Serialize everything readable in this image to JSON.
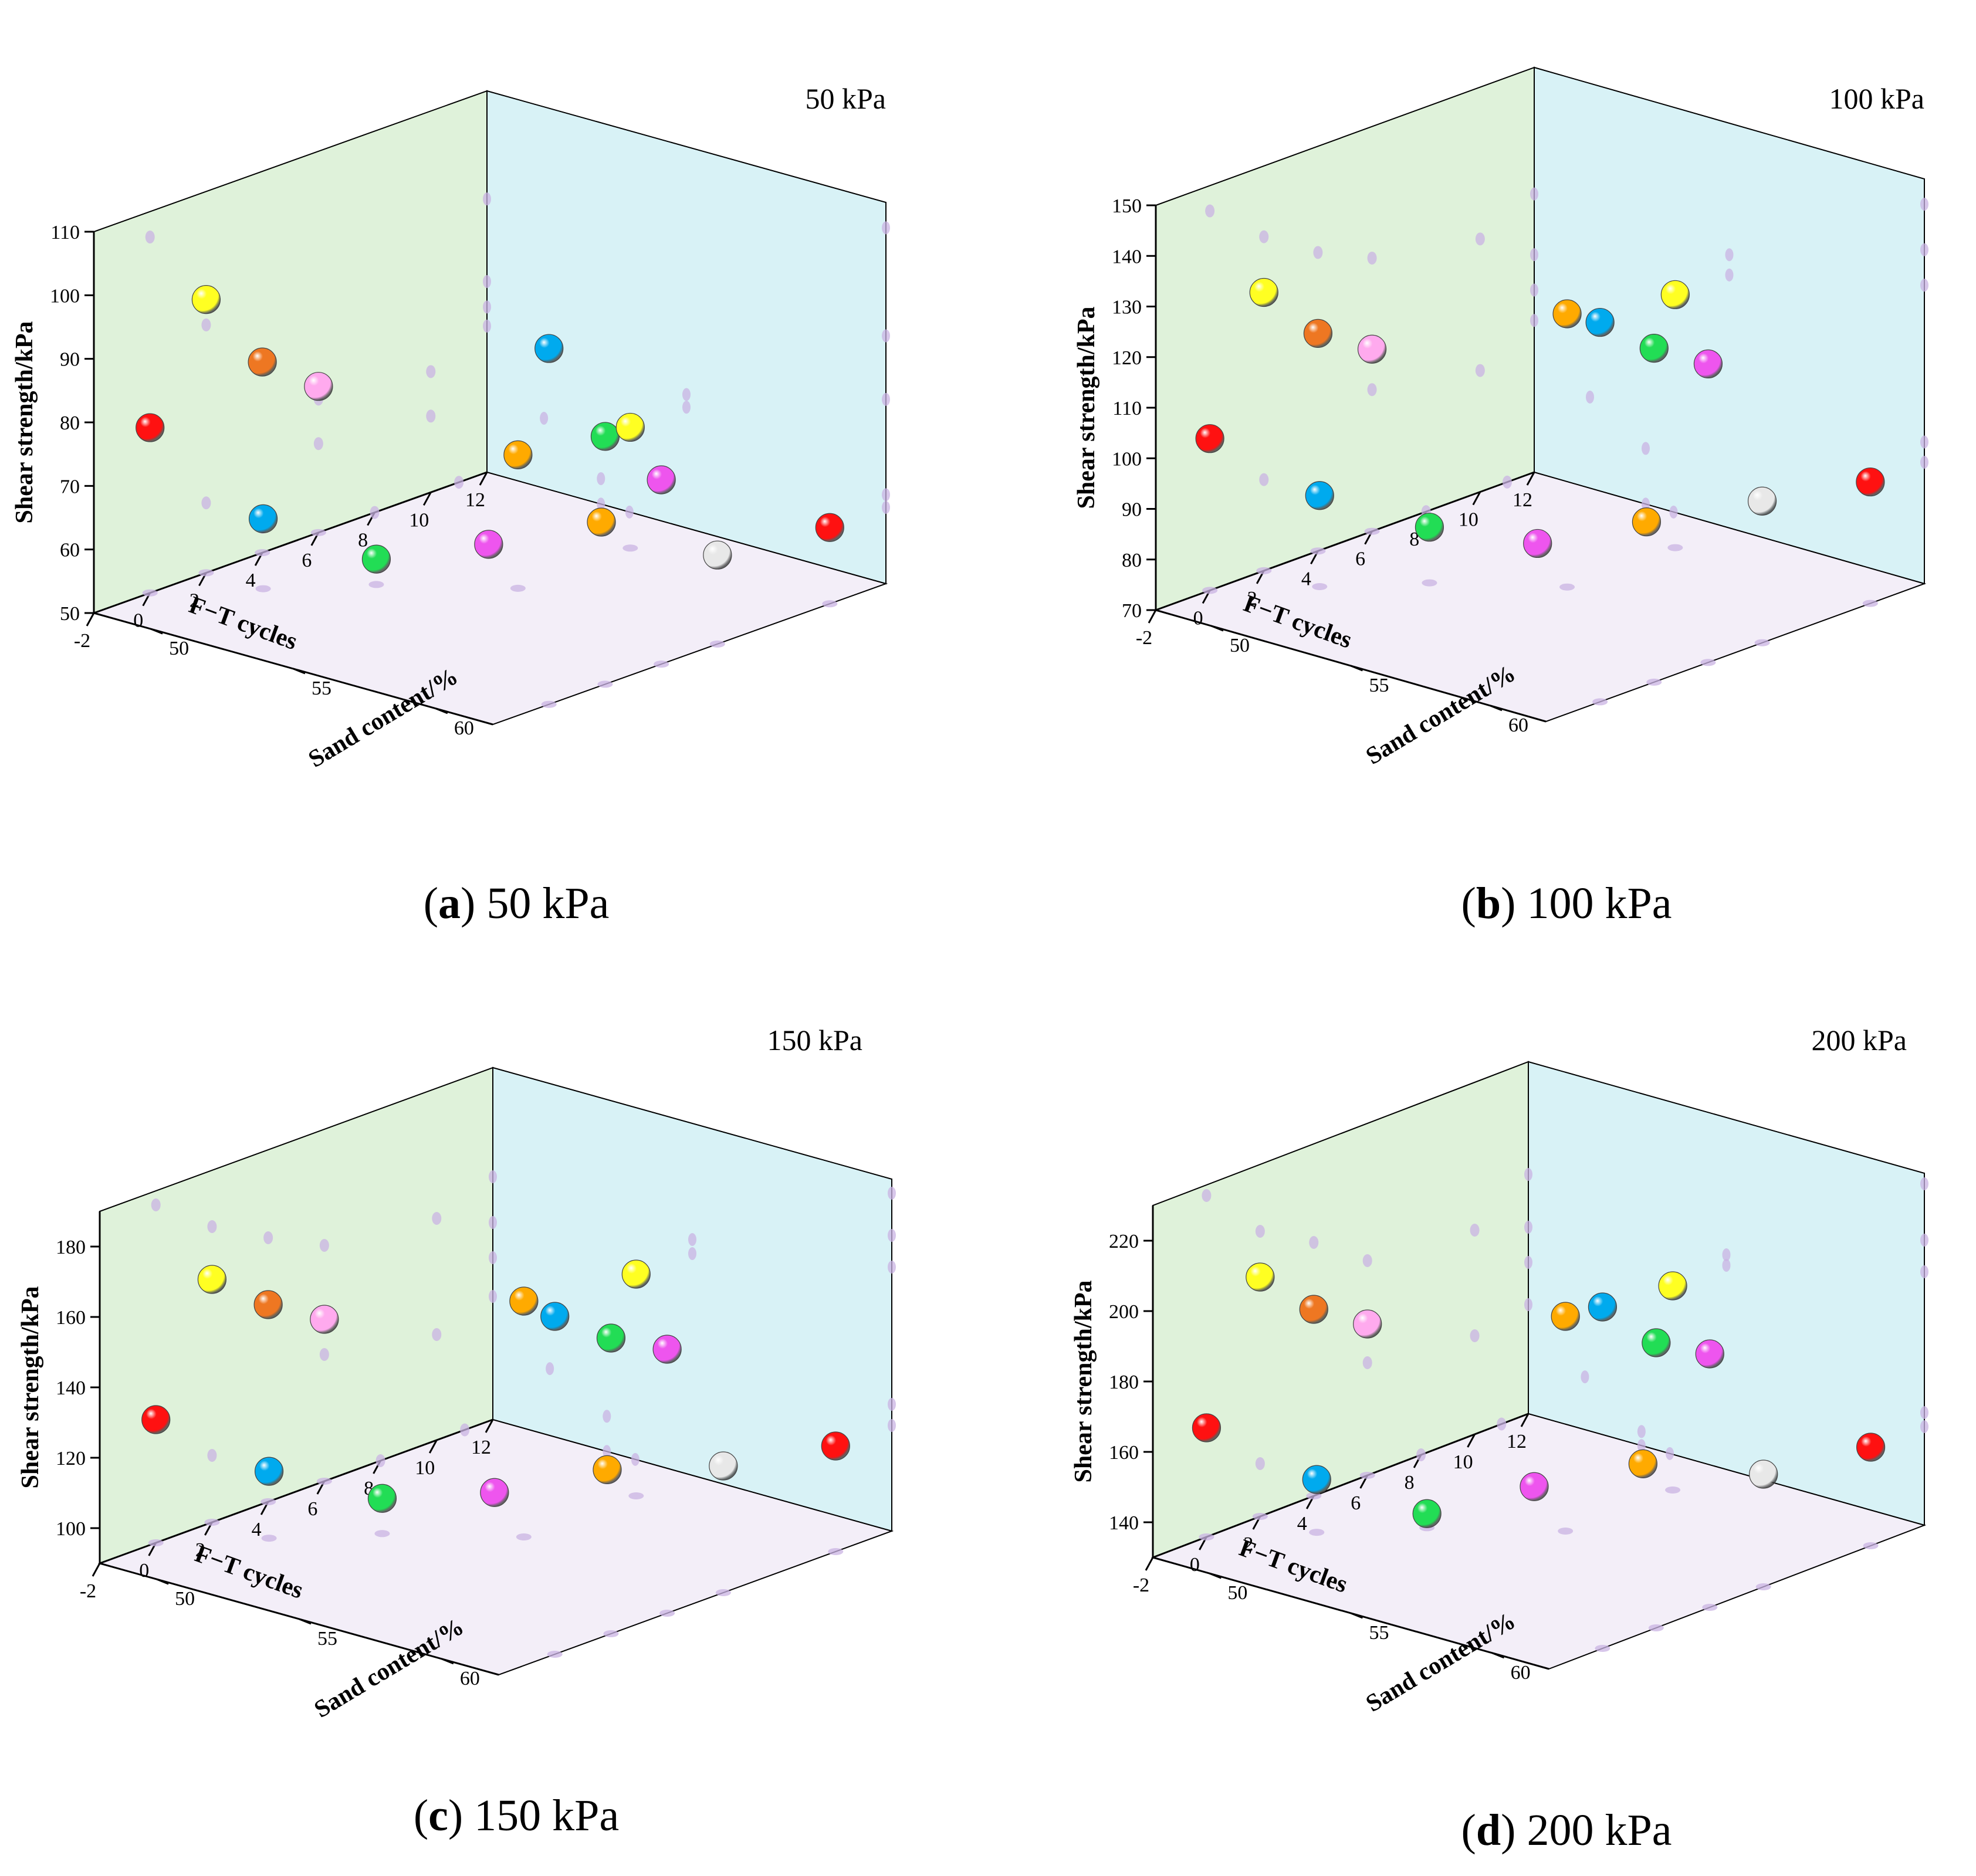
{
  "figure": {
    "caption_open": "(",
    "caption_close": ")"
  },
  "colors": {
    "left_wall": "#dff2da",
    "back_wall": "#d8f2f6",
    "floor": "#f3eef8",
    "shadow": "#c9b3e3",
    "axis": "#000000"
  },
  "chart_data": [
    {
      "type": "scatter3d",
      "panel": "a",
      "caption_label": "a",
      "caption_text": "50 kPa",
      "title": "50 kPa",
      "xlabel": "F−T cycles",
      "ylabel": "Sand content/%",
      "zlabel": "Shear strength/kPa",
      "xlim": [
        -2,
        12
      ],
      "ylim": [
        48,
        62
      ],
      "zlim": [
        50,
        110
      ],
      "xticks": [
        "-2",
        "0",
        "2",
        "4",
        "6",
        "8",
        "10",
        "12"
      ],
      "yticks": [
        "50",
        "55",
        "60"
      ],
      "zticks": [
        "50",
        "60",
        "70",
        "80",
        "90",
        "100",
        "110"
      ],
      "points": [
        {
          "x": 0,
          "y": 62,
          "z": 106,
          "color": "#00aaee"
        },
        {
          "x": 2,
          "y": 62,
          "z": 89,
          "color": "#22dd55"
        },
        {
          "x": 4,
          "y": 62,
          "z": 79,
          "color": "#ee55ee"
        },
        {
          "x": 6,
          "y": 62,
          "z": 64,
          "color": "#e8e8e8"
        },
        {
          "x": 6,
          "y": 55,
          "z": 71,
          "color": "#ffaa00"
        },
        {
          "x": 10,
          "y": 62,
          "z": 62,
          "color": "#ff1111"
        },
        {
          "x": 10,
          "y": 55,
          "z": 69,
          "color": "#ffff22"
        },
        {
          "x": 2,
          "y": 48,
          "z": 93,
          "color": "#ffff22"
        },
        {
          "x": 4,
          "y": 48,
          "z": 80,
          "color": "#ee7722"
        },
        {
          "x": 6,
          "y": 48,
          "z": 73,
          "color": "#ffaaee"
        },
        {
          "x": 0,
          "y": 48,
          "z": 76,
          "color": "#ff1111"
        },
        {
          "x": 2,
          "y": 50,
          "z": 61,
          "color": "#00aaee"
        },
        {
          "x": 4,
          "y": 52,
          "z": 54,
          "color": "#22dd55"
        },
        {
          "x": 8,
          "y": 52,
          "z": 50,
          "color": "#ee55ee"
        },
        {
          "x": 11,
          "y": 53,
          "z": 50,
          "color": "#ffaa00"
        }
      ]
    },
    {
      "type": "scatter3d",
      "panel": "b",
      "caption_label": "b",
      "caption_text": "100 kPa",
      "title": "100 kPa",
      "xlabel": "F−T cycles",
      "ylabel": "Sand content/%",
      "zlabel": "Shear strength/kPa",
      "xlim": [
        -2,
        12
      ],
      "ylim": [
        48,
        62
      ],
      "zlim": [
        70,
        150
      ],
      "xticks": [
        "-2",
        "0",
        "2",
        "4",
        "6",
        "8",
        "10",
        "12"
      ],
      "yticks": [
        "50",
        "55",
        "60"
      ],
      "zticks": [
        "70",
        "80",
        "90",
        "100",
        "110",
        "120",
        "130",
        "140",
        "150"
      ],
      "points": [
        {
          "x": 0,
          "y": 62,
          "z": 145,
          "color": "#00aaee"
        },
        {
          "x": 2,
          "y": 62,
          "z": 136,
          "color": "#22dd55"
        },
        {
          "x": 4,
          "y": 62,
          "z": 129,
          "color": "#ee55ee"
        },
        {
          "x": 6,
          "y": 62,
          "z": 98,
          "color": "#e8e8e8"
        },
        {
          "x": 6,
          "y": 55,
          "z": 124,
          "color": "#ffaa00"
        },
        {
          "x": 10,
          "y": 62,
          "z": 94,
          "color": "#ff1111"
        },
        {
          "x": 10,
          "y": 55,
          "z": 120,
          "color": "#ffff22"
        },
        {
          "x": 2,
          "y": 48,
          "z": 125,
          "color": "#ffff22"
        },
        {
          "x": 4,
          "y": 48,
          "z": 113,
          "color": "#ee7722"
        },
        {
          "x": 6,
          "y": 48,
          "z": 106,
          "color": "#ffaaee"
        },
        {
          "x": 0,
          "y": 48,
          "z": 100,
          "color": "#ff1111"
        },
        {
          "x": 2,
          "y": 50,
          "z": 88,
          "color": "#00aaee"
        },
        {
          "x": 4,
          "y": 52,
          "z": 81,
          "color": "#22dd55"
        },
        {
          "x": 8,
          "y": 52,
          "z": 70,
          "color": "#ee55ee"
        },
        {
          "x": 11,
          "y": 53,
          "z": 70,
          "color": "#ffaa00"
        }
      ]
    },
    {
      "type": "scatter3d",
      "panel": "c",
      "caption_label": "c",
      "caption_text": "150 kPa",
      "title": "150 kPa",
      "xlabel": "F−T cycles",
      "ylabel": "Sand content/%",
      "zlabel": "Shear strength/kPa",
      "xlim": [
        -2,
        12
      ],
      "ylim": [
        48,
        62
      ],
      "zlim": [
        90,
        190
      ],
      "xticks": [
        "-2",
        "0",
        "2",
        "4",
        "6",
        "8",
        "10",
        "12"
      ],
      "yticks": [
        "50",
        "55",
        "60"
      ],
      "zticks": [
        "100",
        "120",
        "140",
        "160",
        "180"
      ],
      "points": [
        {
          "x": 0,
          "y": 62,
          "z": 186,
          "color": "#00aaee"
        },
        {
          "x": 2,
          "y": 62,
          "z": 174,
          "color": "#22dd55"
        },
        {
          "x": 4,
          "y": 62,
          "z": 165,
          "color": "#ee55ee"
        },
        {
          "x": 6,
          "y": 62,
          "z": 126,
          "color": "#e8e8e8"
        },
        {
          "x": 6,
          "y": 55,
          "z": 157,
          "color": "#ffaa00"
        },
        {
          "x": 10,
          "y": 62,
          "z": 120,
          "color": "#ff1111"
        },
        {
          "x": 10,
          "y": 55,
          "z": 153,
          "color": "#ffff22"
        },
        {
          "x": 2,
          "y": 48,
          "z": 159,
          "color": "#ffff22"
        },
        {
          "x": 4,
          "y": 48,
          "z": 146,
          "color": "#ee7722"
        },
        {
          "x": 6,
          "y": 48,
          "z": 136,
          "color": "#ffaaee"
        },
        {
          "x": 0,
          "y": 48,
          "z": 125,
          "color": "#ff1111"
        },
        {
          "x": 2,
          "y": 50,
          "z": 109,
          "color": "#00aaee"
        },
        {
          "x": 4,
          "y": 52,
          "z": 100,
          "color": "#22dd55"
        },
        {
          "x": 8,
          "y": 52,
          "z": 90,
          "color": "#ee55ee"
        },
        {
          "x": 11,
          "y": 53,
          "z": 90,
          "color": "#ffaa00"
        }
      ]
    },
    {
      "type": "scatter3d",
      "panel": "d",
      "caption_label": "d",
      "caption_text": "200 kPa",
      "title": "200 kPa",
      "xlabel": "F−T cycles",
      "ylabel": "Sand content/%",
      "zlabel": "Shear strength/kPa",
      "xlim": [
        -2,
        12
      ],
      "ylim": [
        48,
        62
      ],
      "zlim": [
        130,
        230
      ],
      "xticks": [
        "-2",
        "0",
        "2",
        "4",
        "6",
        "8",
        "10",
        "12"
      ],
      "yticks": [
        "50",
        "55",
        "60"
      ],
      "zticks": [
        "140",
        "160",
        "180",
        "200",
        "220"
      ],
      "points": [
        {
          "x": 0,
          "y": 62,
          "z": 227,
          "color": "#00aaee"
        },
        {
          "x": 2,
          "y": 62,
          "z": 211,
          "color": "#22dd55"
        },
        {
          "x": 4,
          "y": 62,
          "z": 202,
          "color": "#ee55ee"
        },
        {
          "x": 6,
          "y": 62,
          "z": 162,
          "color": "#e8e8e8"
        },
        {
          "x": 6,
          "y": 55,
          "z": 191,
          "color": "#ffaa00"
        },
        {
          "x": 10,
          "y": 62,
          "z": 158,
          "color": "#ff1111"
        },
        {
          "x": 10,
          "y": 55,
          "z": 188,
          "color": "#ffff22"
        },
        {
          "x": 2,
          "y": 48,
          "z": 198,
          "color": "#ffff22"
        },
        {
          "x": 4,
          "y": 48,
          "z": 183,
          "color": "#ee7722"
        },
        {
          "x": 6,
          "y": 48,
          "z": 173,
          "color": "#ffaaee"
        },
        {
          "x": 0,
          "y": 48,
          "z": 161,
          "color": "#ff1111"
        },
        {
          "x": 2,
          "y": 50,
          "z": 145,
          "color": "#00aaee"
        },
        {
          "x": 4,
          "y": 52,
          "z": 134,
          "color": "#22dd55"
        },
        {
          "x": 8,
          "y": 52,
          "z": 130,
          "color": "#ee55ee"
        },
        {
          "x": 11,
          "y": 53,
          "z": 130,
          "color": "#ffaa00"
        }
      ]
    }
  ]
}
